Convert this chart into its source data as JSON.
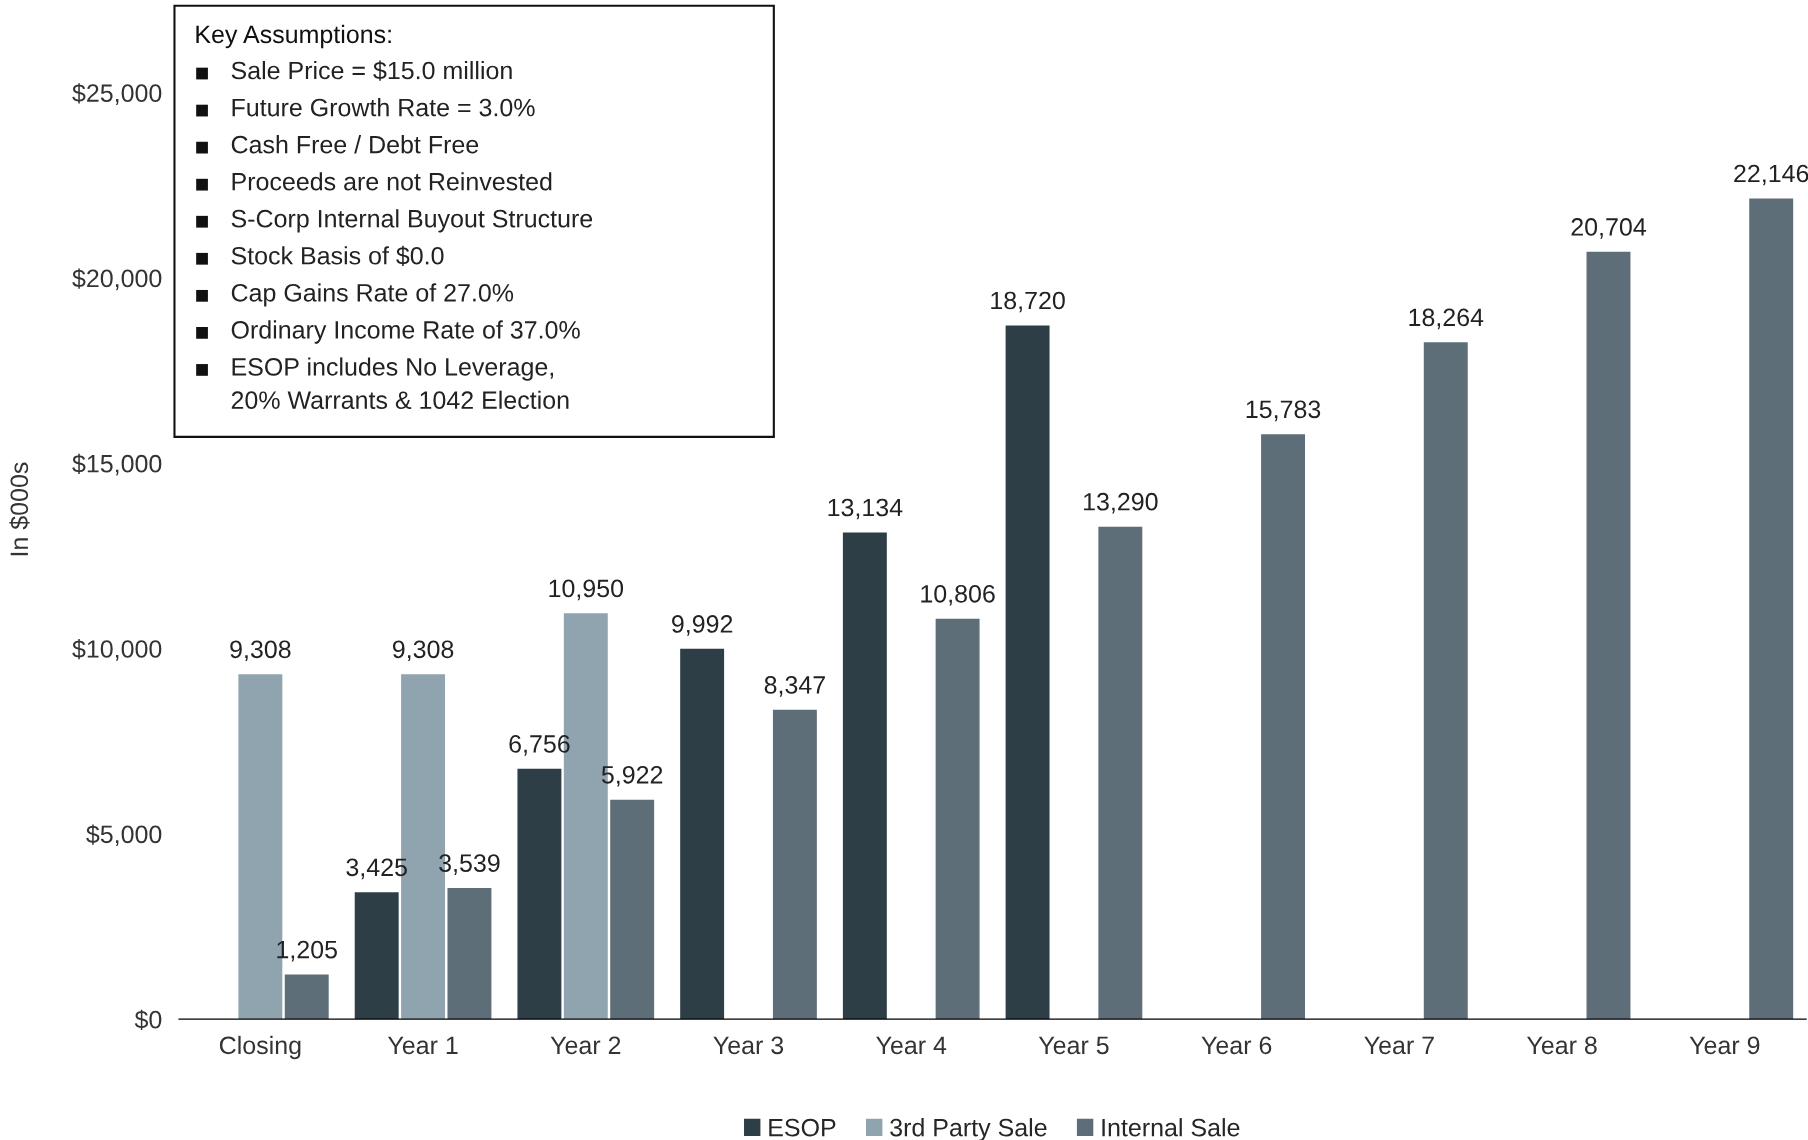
{
  "chart_data": {
    "type": "bar",
    "ylabel": "In $000s",
    "categories": [
      "Closing",
      "Year 1",
      "Year 2",
      "Year 3",
      "Year 4",
      "Year 5",
      "Year 6",
      "Year 7",
      "Year 8",
      "Year 9"
    ],
    "series": [
      {
        "name": "ESOP",
        "color": "#2d3e46",
        "values": [
          null,
          3425,
          6756,
          9992,
          13134,
          18720,
          null,
          null,
          null,
          null
        ],
        "value_labels": [
          null,
          "3,425",
          "6,756",
          "9,992",
          "13,134",
          "18,720",
          null,
          null,
          null,
          null
        ]
      },
      {
        "name": "3rd Party Sale",
        "color": "#8fa4ae",
        "values": [
          9308,
          9308,
          10950,
          null,
          null,
          null,
          null,
          null,
          null,
          null
        ],
        "value_labels": [
          "9,308",
          "9,308",
          "10,950",
          null,
          null,
          null,
          null,
          null,
          null,
          null
        ]
      },
      {
        "name": "Internal Sale",
        "color": "#5e6e78",
        "values": [
          1205,
          3539,
          5922,
          8347,
          10806,
          13290,
          15783,
          18264,
          20704,
          22146
        ],
        "value_labels": [
          "1,205",
          "3,539",
          "5,922",
          "8,347",
          "10,806",
          "13,290",
          "15,783",
          "18,264",
          "20,704",
          "22,146"
        ]
      }
    ],
    "ylim": [
      0,
      27500
    ],
    "yticks": [
      {
        "value": 0,
        "label": "$0"
      },
      {
        "value": 5000,
        "label": "$5,000"
      },
      {
        "value": 10000,
        "label": "$10,000"
      },
      {
        "value": 15000,
        "label": "$15,000"
      },
      {
        "value": 20000,
        "label": "$20,000"
      },
      {
        "value": 25000,
        "label": "$25,000"
      }
    ],
    "grid": false,
    "legend": "bottom",
    "annotations": [
      "Key Assumptions:",
      "Sale Price = $15.0 million",
      "Future Growth Rate = 3.0%",
      "Cash Free / Debt Free",
      "Proceeds are not Reinvested",
      "S-Corp Internal Buyout Structure",
      "Stock Basis of $0.0",
      "Cap Gains Rate of 27.0%",
      "Ordinary Income Rate of 37.0%",
      "ESOP includes No Leverage,\n20% Warrants & 1042 Election"
    ]
  }
}
